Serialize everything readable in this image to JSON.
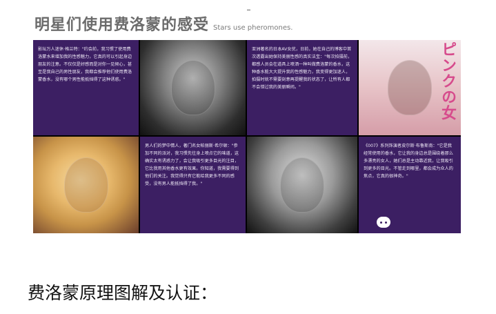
{
  "header": {
    "title_cn": "明星们使用费洛蒙的感受",
    "title_en": "Stars use pheromones."
  },
  "panels": {
    "text1": "影坛万人迷休·格兰特：\"约会前，我习惯了使用费洛蒙水来增加我的性感魅力，它真的可以引起身边朋友的注意。不仅仅是好感而是对你一见倾心，甚至是我自己的男性朋友，我都会推荐他们使用费洛蒙香水，没有哪个男性能抵挡得了这种诱惑。\"",
    "text2": "亚洲著名的日本AV女优，日前，她在自己的博客中首次透露出她保持美丽性感的真实法宝：\"每次拍摄前，都感人员会在道具上喷洒一种叫做费洛蒙的香水，这种香水能大大提升我的性感魅力，我变得更加迷人，拍摄时就不需要刻意再提醒我的状态了，让所有人都不会错过我的美丽瞬间。\"",
    "text3": "男人们的梦中情人，著门名女帕丽斯·希尔顿：\"参加不同的派对，我习惯先往身上喷点它的味道，这确实太有诱惑力了，会让我吸引更多目光的注目，它比我用其他香水更有效果。你知道，我需要得到他们的关注。我觉得只有它能给我更多不同的感受，没有男人能抵挡得了我。\"",
    "text4": "《007》系列饰演者皮尔斯·布鲁斯南：\"它是我经常使用的香水，它让我的身边总是围绕着那么多漂亮的女人，她们总是主动靠近我，让我吸引到更多的目光。不管走到哪里，都会成为众人的焦点，它真的很神奇。\"",
    "pink_sign": "ピンクの女"
  },
  "caption": "费洛蒙原理图解及认证："
}
